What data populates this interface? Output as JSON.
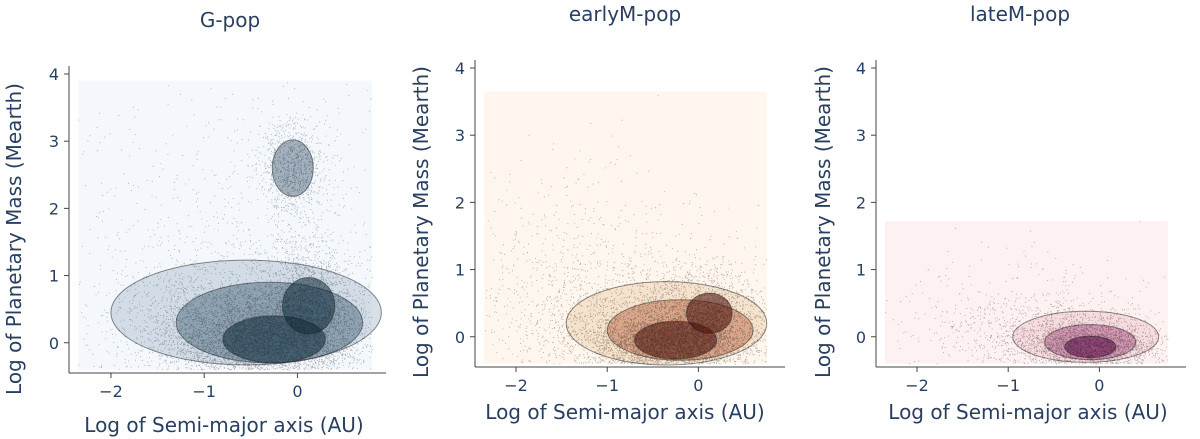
{
  "chart_data": [
    {
      "type": "scatter",
      "title": "G-pop",
      "xlabel": "Log of Semi-major axis (AU)",
      "ylabel": "Log of Planetary Mass (Mearth)",
      "xlim": [
        -2.45,
        0.95
      ],
      "ylim": [
        -0.45,
        4.0
      ],
      "xticks": [
        "−2",
        "−1",
        "0"
      ],
      "yticks": [
        "0",
        "1",
        "2",
        "3",
        "4"
      ],
      "grid": false,
      "colors": {
        "background": "#f4f8fc",
        "scatter": "#0e1c27",
        "dense": "#0d2a3a",
        "mid": "#3d5a70",
        "light": "#b7c5d3"
      },
      "field_x": [
        -2.35,
        0.8
      ],
      "field_y": [
        -0.4,
        3.9
      ],
      "clusters": [
        {
          "cx": -0.35,
          "cy": 0.05,
          "sx": 0.5,
          "sy": 0.32,
          "n": 4200
        },
        {
          "cx": 0.1,
          "cy": 0.55,
          "sx": 0.3,
          "sy": 0.45,
          "n": 2200
        },
        {
          "cx": -0.9,
          "cy": 0.3,
          "sx": 0.55,
          "sy": 0.5,
          "n": 1600
        },
        {
          "cx": -0.05,
          "cy": 2.6,
          "sx": 0.18,
          "sy": 0.35,
          "n": 900
        },
        {
          "cx": -0.6,
          "cy": 1.5,
          "sx": 1.0,
          "sy": 1.2,
          "n": 800
        }
      ],
      "contours": [
        {
          "level": "outer",
          "cx": -0.55,
          "cy": 0.45,
          "rx": 1.45,
          "ry": 0.78
        },
        {
          "level": "mid",
          "cx": -0.3,
          "cy": 0.3,
          "rx": 1.0,
          "ry": 0.6
        },
        {
          "level": "inner",
          "cx": -0.25,
          "cy": 0.05,
          "rx": 0.55,
          "ry": 0.35
        },
        {
          "level": "inner",
          "cx": 0.12,
          "cy": 0.55,
          "rx": 0.28,
          "ry": 0.42
        },
        {
          "level": "mid",
          "cx": -0.05,
          "cy": 2.6,
          "rx": 0.22,
          "ry": 0.42
        }
      ]
    },
    {
      "type": "scatter",
      "title": "earlyM-pop",
      "xlabel": "Log of Semi-major axis (AU)",
      "ylabel": "Log of Planetary Mass (Mearth)",
      "xlim": [
        -2.45,
        0.95
      ],
      "ylim": [
        -0.45,
        4.0
      ],
      "xticks": [
        "−2",
        "−1",
        "0"
      ],
      "yticks": [
        "0",
        "1",
        "2",
        "3",
        "4"
      ],
      "grid": false,
      "colors": {
        "background": "#fff6ee",
        "scatter": "#1a0e08",
        "dense": "#4a0c08",
        "mid": "#b35a3a",
        "light": "#eed3b3"
      },
      "field_x": [
        -2.35,
        0.75
      ],
      "field_y": [
        -0.4,
        3.65
      ],
      "clusters": [
        {
          "cx": -0.3,
          "cy": -0.1,
          "sx": 0.45,
          "sy": 0.25,
          "n": 3600
        },
        {
          "cx": 0.1,
          "cy": 0.35,
          "sx": 0.35,
          "sy": 0.35,
          "n": 1600
        },
        {
          "cx": -0.8,
          "cy": 0.2,
          "sx": 0.6,
          "sy": 0.45,
          "n": 1400
        },
        {
          "cx": -1.3,
          "cy": 0.8,
          "sx": 0.8,
          "sy": 0.9,
          "n": 700
        }
      ],
      "contours": [
        {
          "level": "outer",
          "cx": -0.35,
          "cy": 0.2,
          "rx": 1.1,
          "ry": 0.62
        },
        {
          "level": "mid",
          "cx": -0.2,
          "cy": 0.1,
          "rx": 0.8,
          "ry": 0.45
        },
        {
          "level": "inner",
          "cx": -0.25,
          "cy": -0.05,
          "rx": 0.45,
          "ry": 0.28
        },
        {
          "level": "inner",
          "cx": 0.12,
          "cy": 0.35,
          "rx": 0.25,
          "ry": 0.3
        }
      ]
    },
    {
      "type": "scatter",
      "title": "lateM-pop",
      "xlabel": "Log of Semi-major axis (AU)",
      "ylabel": "Log of Planetary Mass (Mearth)",
      "xlim": [
        -2.45,
        0.95
      ],
      "ylim": [
        -0.45,
        4.0
      ],
      "xticks": [
        "−2",
        "−1",
        "0"
      ],
      "yticks": [
        "0",
        "1",
        "2",
        "3",
        "4"
      ],
      "grid": false,
      "colors": {
        "background": "#fdf1f1",
        "scatter": "#1e0a14",
        "dense": "#5c0a4a",
        "mid": "#a2467a",
        "light": "#f2cbd0"
      },
      "field_x": [
        -2.35,
        0.75
      ],
      "field_y": [
        -0.4,
        1.72
      ],
      "clusters": [
        {
          "cx": -0.1,
          "cy": -0.15,
          "sx": 0.4,
          "sy": 0.2,
          "n": 2200
        },
        {
          "cx": -0.5,
          "cy": 0.05,
          "sx": 0.55,
          "sy": 0.25,
          "n": 900
        },
        {
          "cx": -1.0,
          "cy": 0.3,
          "sx": 0.8,
          "sy": 0.5,
          "n": 350
        }
      ],
      "contours": [
        {
          "level": "outer",
          "cx": -0.15,
          "cy": 0.0,
          "rx": 0.8,
          "ry": 0.38
        },
        {
          "level": "mid",
          "cx": -0.1,
          "cy": -0.08,
          "rx": 0.5,
          "ry": 0.26
        },
        {
          "level": "inner",
          "cx": -0.1,
          "cy": -0.15,
          "rx": 0.28,
          "ry": 0.16
        }
      ]
    }
  ]
}
